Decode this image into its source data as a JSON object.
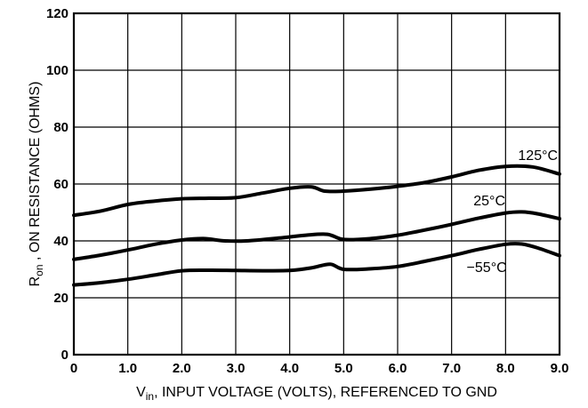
{
  "chart_data": {
    "type": "line",
    "title": "",
    "xlabel": {
      "prefix": "V",
      "subscript": "in",
      "text": ", INPUT VOLTAGE (VOLTS), REFERENCED TO GND"
    },
    "ylabel": {
      "prefix": "R",
      "subscript": "on",
      "text": " , ON RESISTANCE (OHMS)"
    },
    "xlim": [
      0,
      9
    ],
    "ylim": [
      0,
      120
    ],
    "x_ticks": [
      0,
      1,
      2,
      3,
      4,
      5,
      6,
      7,
      8,
      9
    ],
    "x_tick_labels": [
      "0",
      "1.0",
      "2.0",
      "3.0",
      "4.0",
      "5.0",
      "6.0",
      "7.0",
      "8.0",
      "9.0"
    ],
    "y_ticks": [
      0,
      20,
      40,
      60,
      80,
      100,
      120
    ],
    "y_tick_labels": [
      "0",
      "20",
      "40",
      "60",
      "80",
      "100",
      "120"
    ],
    "grid": true,
    "series": [
      {
        "name": "125°C",
        "points": [
          [
            0,
            49
          ],
          [
            0.5,
            50.5
          ],
          [
            1,
            52.8
          ],
          [
            1.5,
            54
          ],
          [
            2,
            54.8
          ],
          [
            2.5,
            55
          ],
          [
            3,
            55.2
          ],
          [
            3.5,
            56.8
          ],
          [
            4,
            58.5
          ],
          [
            4.4,
            59
          ],
          [
            4.65,
            57.5
          ],
          [
            5,
            57.5
          ],
          [
            5.5,
            58.2
          ],
          [
            6,
            59.2
          ],
          [
            6.5,
            60.5
          ],
          [
            7,
            62.5
          ],
          [
            7.5,
            64.8
          ],
          [
            8,
            66.2
          ],
          [
            8.5,
            66
          ],
          [
            9,
            63.5
          ]
        ]
      },
      {
        "name": "25°C",
        "points": [
          [
            0,
            33.5
          ],
          [
            0.5,
            35
          ],
          [
            1,
            36.8
          ],
          [
            1.5,
            38.8
          ],
          [
            2,
            40.3
          ],
          [
            2.4,
            40.8
          ],
          [
            2.8,
            40
          ],
          [
            3.2,
            40
          ],
          [
            3.8,
            41
          ],
          [
            4.3,
            42
          ],
          [
            4.7,
            42.3
          ],
          [
            5,
            40.5
          ],
          [
            5.5,
            40.8
          ],
          [
            6,
            42
          ],
          [
            6.5,
            43.8
          ],
          [
            7,
            45.8
          ],
          [
            7.5,
            48
          ],
          [
            8,
            49.8
          ],
          [
            8.3,
            50.2
          ],
          [
            8.6,
            49.5
          ],
          [
            9,
            47.8
          ]
        ]
      },
      {
        "name": "−55°C",
        "points": [
          [
            0,
            24.5
          ],
          [
            0.5,
            25.3
          ],
          [
            1,
            26.5
          ],
          [
            1.5,
            28
          ],
          [
            2,
            29.5
          ],
          [
            2.5,
            29.7
          ],
          [
            3,
            29.6
          ],
          [
            3.5,
            29.5
          ],
          [
            4,
            29.6
          ],
          [
            4.4,
            30.5
          ],
          [
            4.75,
            31.8
          ],
          [
            5,
            30
          ],
          [
            5.5,
            30.2
          ],
          [
            6,
            31
          ],
          [
            6.5,
            32.8
          ],
          [
            7,
            34.8
          ],
          [
            7.5,
            37
          ],
          [
            8,
            38.8
          ],
          [
            8.3,
            38.9
          ],
          [
            8.6,
            37.5
          ],
          [
            9,
            34.8
          ]
        ]
      }
    ]
  }
}
